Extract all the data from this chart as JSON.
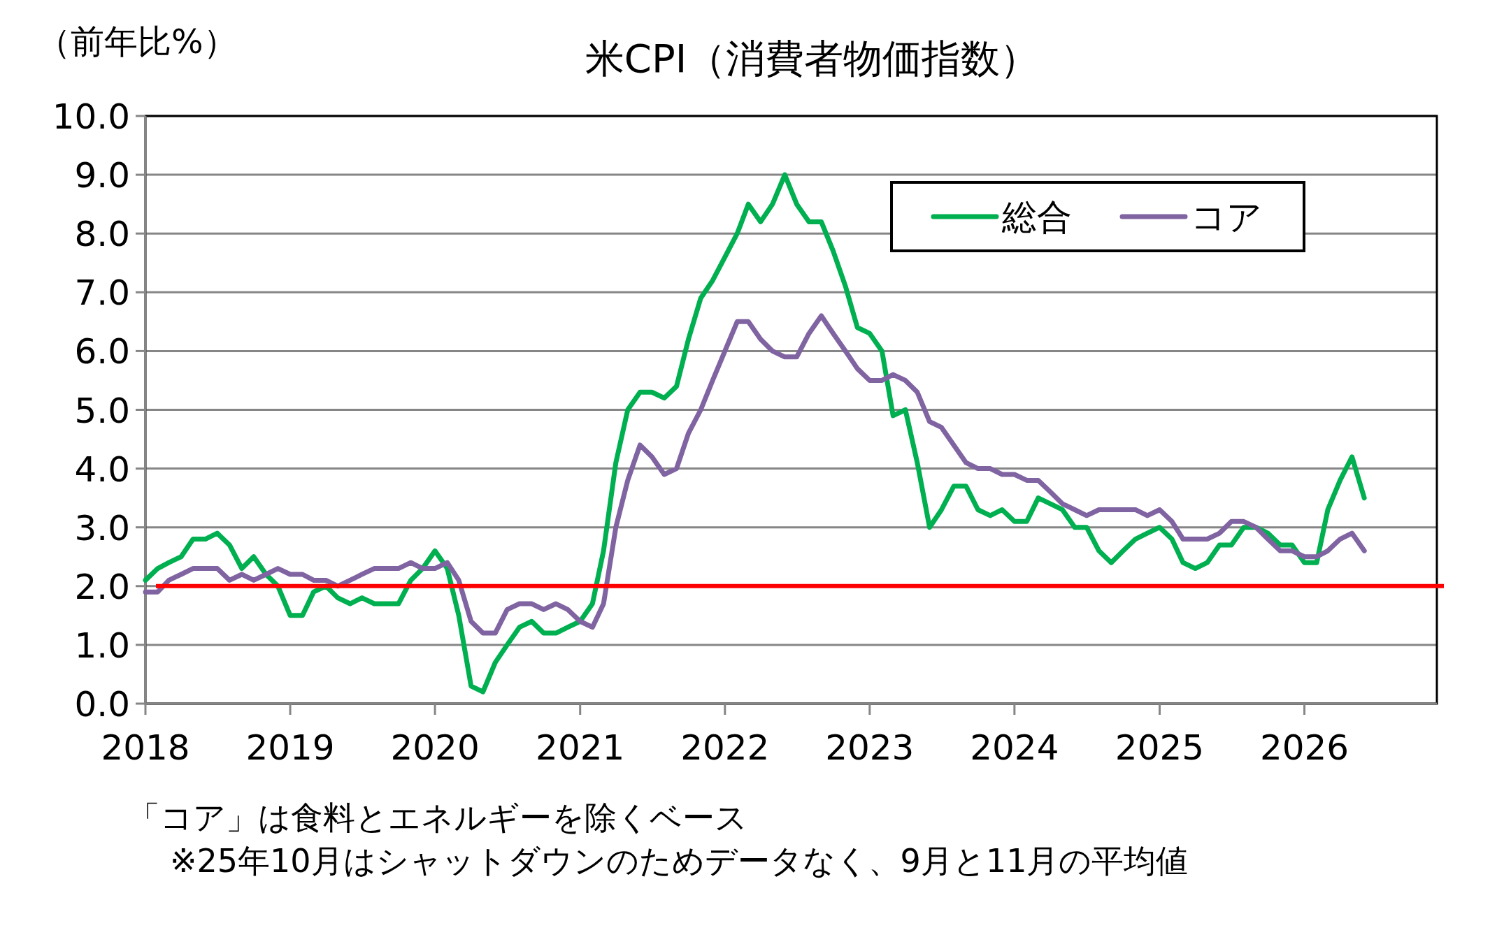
{
  "chart_data": {
    "type": "line",
    "title": "米CPI（消費者物価指数）",
    "ylabel": "（前年比%）",
    "annotations": [
      "「コア」は食料とエネルギーを除くベース",
      "※25年10月はシャットダウンのためデータなく、9月と11月の平均値"
    ],
    "x": [
      "2018-01",
      "2018-02",
      "2018-03",
      "2018-04",
      "2018-05",
      "2018-06",
      "2018-07",
      "2018-08",
      "2018-09",
      "2018-10",
      "2018-11",
      "2018-12",
      "2019-01",
      "2019-02",
      "2019-03",
      "2019-04",
      "2019-05",
      "2019-06",
      "2019-07",
      "2019-08",
      "2019-09",
      "2019-10",
      "2019-11",
      "2019-12",
      "2020-01",
      "2020-02",
      "2020-03",
      "2020-04",
      "2020-05",
      "2020-06",
      "2020-07",
      "2020-08",
      "2020-09",
      "2020-10",
      "2020-11",
      "2020-12",
      "2021-01",
      "2021-02",
      "2021-03",
      "2021-04",
      "2021-05",
      "2021-06",
      "2021-07",
      "2021-08",
      "2021-09",
      "2021-10",
      "2021-11",
      "2021-12",
      "2022-01",
      "2022-02",
      "2022-03",
      "2022-04",
      "2022-05",
      "2022-06",
      "2022-07",
      "2022-08",
      "2022-09",
      "2022-10",
      "2022-11",
      "2022-12",
      "2023-01",
      "2023-02",
      "2023-03",
      "2023-04",
      "2023-05",
      "2023-06",
      "2023-07",
      "2023-08",
      "2023-09",
      "2023-10",
      "2023-11",
      "2023-12",
      "2024-01",
      "2024-02",
      "2024-03",
      "2024-04",
      "2024-05",
      "2024-06",
      "2024-07",
      "2024-08",
      "2024-09",
      "2024-10",
      "2024-11",
      "2024-12",
      "2025-01",
      "2025-02",
      "2025-03",
      "2025-04",
      "2025-05",
      "2025-06",
      "2025-07",
      "2025-08",
      "2025-09",
      "2025-10",
      "2025-11",
      "2025-12",
      "2026-01",
      "2026-02",
      "2026-03",
      "2026-04",
      "2026-05",
      "2026-06"
    ],
    "series": [
      {
        "name": "総合",
        "color": "#00b050",
        "values": [
          2.1,
          2.3,
          2.4,
          2.5,
          2.8,
          2.8,
          2.9,
          2.7,
          2.3,
          2.5,
          2.2,
          2.0,
          1.5,
          1.5,
          1.9,
          2.0,
          1.8,
          1.7,
          1.8,
          1.7,
          1.7,
          1.7,
          2.1,
          2.3,
          2.6,
          2.3,
          1.5,
          0.3,
          0.2,
          0.7,
          1.0,
          1.3,
          1.4,
          1.2,
          1.2,
          1.3,
          1.4,
          1.7,
          2.6,
          4.1,
          5.0,
          5.3,
          5.3,
          5.2,
          5.4,
          6.2,
          6.9,
          7.2,
          7.6,
          8.0,
          8.5,
          8.2,
          8.5,
          9.0,
          8.5,
          8.2,
          8.2,
          7.7,
          7.1,
          6.4,
          6.3,
          6.0,
          4.9,
          5.0,
          4.1,
          3.0,
          3.3,
          3.7,
          3.7,
          3.3,
          3.2,
          3.3,
          3.1,
          3.1,
          3.5,
          3.4,
          3.3,
          3.0,
          3.0,
          2.6,
          2.4,
          2.6,
          2.8,
          2.9,
          3.0,
          2.8,
          2.4,
          2.3,
          2.4,
          2.7,
          2.7,
          3.0,
          3.0,
          2.9,
          2.7,
          2.7,
          2.4,
          2.4,
          3.3,
          3.8,
          4.2,
          3.5
        ]
      },
      {
        "name": "コア",
        "color": "#8064a2",
        "values": [
          1.9,
          1.9,
          2.1,
          2.2,
          2.3,
          2.3,
          2.3,
          2.1,
          2.2,
          2.1,
          2.2,
          2.3,
          2.2,
          2.2,
          2.1,
          2.1,
          2.0,
          2.1,
          2.2,
          2.3,
          2.3,
          2.3,
          2.4,
          2.3,
          2.3,
          2.4,
          2.1,
          1.4,
          1.2,
          1.2,
          1.6,
          1.7,
          1.7,
          1.6,
          1.7,
          1.6,
          1.4,
          1.3,
          1.7,
          3.0,
          3.8,
          4.4,
          4.2,
          3.9,
          4.0,
          4.6,
          5.0,
          5.5,
          6.0,
          6.5,
          6.5,
          6.2,
          6.0,
          5.9,
          5.9,
          6.3,
          6.6,
          6.3,
          6.0,
          5.7,
          5.5,
          5.5,
          5.6,
          5.5,
          5.3,
          4.8,
          4.7,
          4.4,
          4.1,
          4.0,
          4.0,
          3.9,
          3.9,
          3.8,
          3.8,
          3.6,
          3.4,
          3.3,
          3.2,
          3.3,
          3.3,
          3.3,
          3.3,
          3.2,
          3.3,
          3.1,
          2.8,
          2.8,
          2.8,
          2.9,
          3.1,
          3.1,
          3.0,
          2.8,
          2.6,
          2.6,
          2.5,
          2.5,
          2.6,
          2.8,
          2.9,
          2.6
        ]
      }
    ],
    "xlim": [
      "2018-01",
      "2026-12"
    ],
    "xticks": [
      "2018",
      "2019",
      "2020",
      "2021",
      "2022",
      "2023",
      "2024",
      "2025",
      "2026"
    ],
    "ylim": [
      0,
      10
    ],
    "yticks": [
      {
        "value": 0,
        "label": "0.0"
      },
      {
        "value": 1,
        "label": "1.0"
      },
      {
        "value": 2,
        "label": "2.0"
      },
      {
        "value": 3,
        "label": "3.0"
      },
      {
        "value": 4,
        "label": "4.0"
      },
      {
        "value": 5,
        "label": "5.0"
      },
      {
        "value": 6,
        "label": "6.0"
      },
      {
        "value": 7,
        "label": "7.0"
      },
      {
        "value": 8,
        "label": "8.0"
      },
      {
        "value": 9,
        "label": "9.0"
      },
      {
        "value": 10,
        "label": "10.0"
      }
    ],
    "ref_lines": [
      {
        "axis": "y",
        "value": 2,
        "color": "#ff0000"
      }
    ],
    "grid": "y",
    "legend": "top right",
    "marker": "none",
    "line_style": "solid"
  }
}
